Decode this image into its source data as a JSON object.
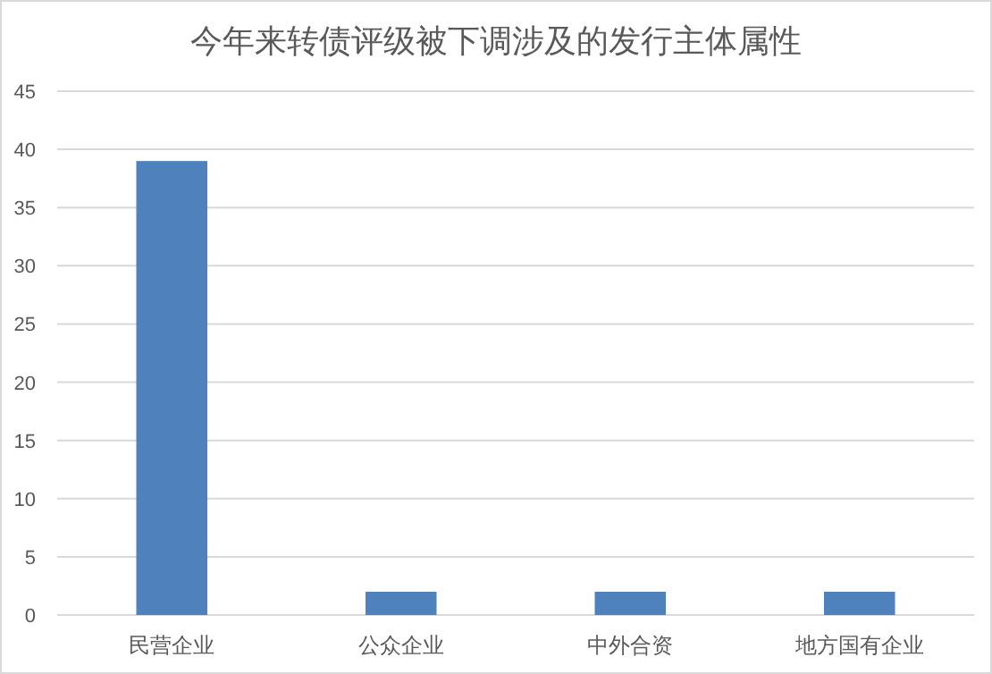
{
  "chart_data": {
    "type": "bar",
    "title": "今年来转债评级被下调涉及的发行主体属性",
    "categories": [
      "民营企业",
      "公众企业",
      "中外合资",
      "地方国有企业"
    ],
    "values": [
      39,
      2,
      2,
      2
    ],
    "color": "#4f81bd",
    "ylim": [
      0,
      45
    ],
    "yticks": [
      0,
      5,
      10,
      15,
      20,
      25,
      30,
      35,
      40,
      45
    ],
    "grid": "y"
  }
}
